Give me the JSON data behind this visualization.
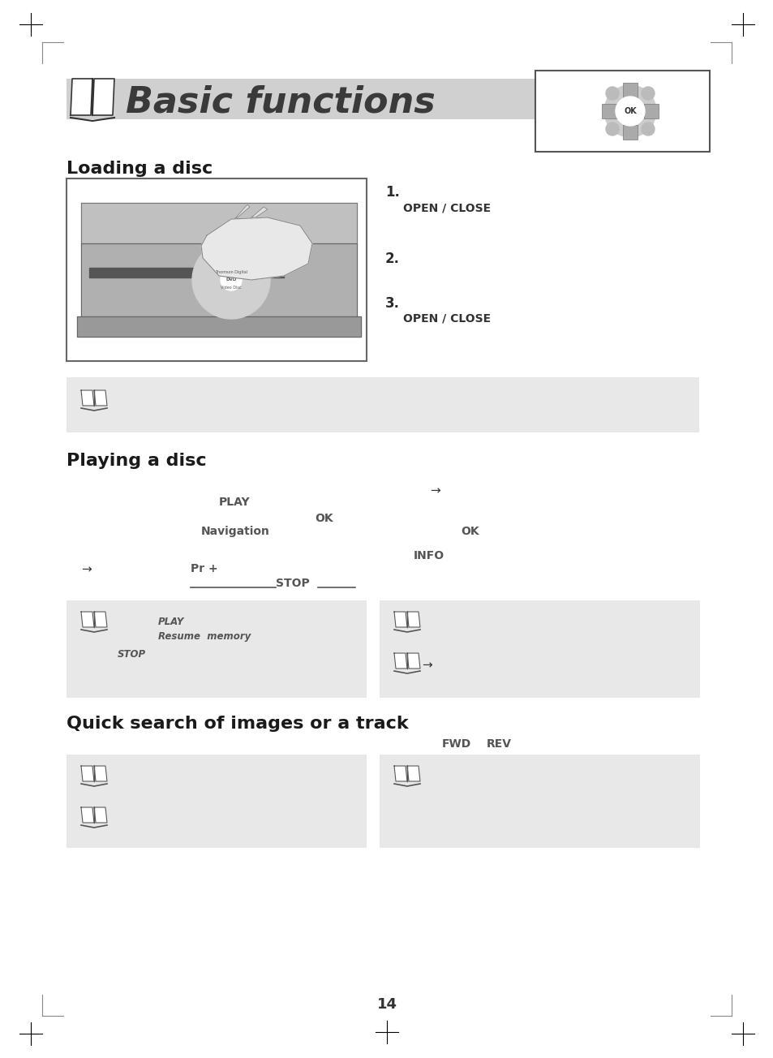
{
  "page_bg": "#ffffff",
  "section_bg": "#e8e8e8",
  "title_main": "Basic functions",
  "section1_title": "Loading a disc",
  "section2_title": "Playing a disc",
  "section3_title": "Quick search of images or a track",
  "page_num": "14",
  "title_bar_color": "#d0d0d0",
  "text_dark": "#444444",
  "text_bold_color": "#333333",
  "arrow_color": "#333333"
}
